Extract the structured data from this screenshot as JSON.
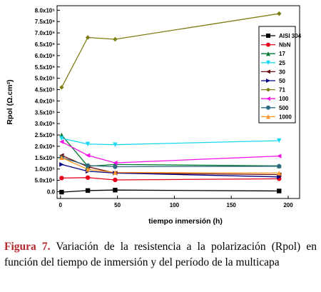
{
  "chart_data": {
    "type": "line",
    "xlabel": "tiempo inmersión (h)",
    "ylabel": "Rpol (Ω.cm²)",
    "xlim": [
      -3,
      210
    ],
    "ylim": [
      -30000,
      820000
    ],
    "x_ticks": [
      {
        "value": 0,
        "label": "0"
      },
      {
        "value": 50,
        "label": "50"
      },
      {
        "value": 100,
        "label": "100"
      },
      {
        "value": 150,
        "label": "150"
      },
      {
        "value": 200,
        "label": "200"
      }
    ],
    "y_ticks": [
      {
        "value": 0,
        "label": "0.0"
      },
      {
        "value": 50000,
        "label": "5.0x10⁴"
      },
      {
        "value": 100000,
        "label": "1.0x10⁵"
      },
      {
        "value": 150000,
        "label": "1.5x10⁵"
      },
      {
        "value": 200000,
        "label": "2.0x10⁵"
      },
      {
        "value": 250000,
        "label": "2.5x10⁵"
      },
      {
        "value": 300000,
        "label": "3.0x10⁵"
      },
      {
        "value": 350000,
        "label": "3.5x10⁵"
      },
      {
        "value": 400000,
        "label": "4.0x10⁵"
      },
      {
        "value": 450000,
        "label": "4.5x10⁵"
      },
      {
        "value": 500000,
        "label": "5.0x10⁵"
      },
      {
        "value": 550000,
        "label": "5.5x10⁵"
      },
      {
        "value": 600000,
        "label": "6.0x10⁵"
      },
      {
        "value": 650000,
        "label": "6.5x10⁵"
      },
      {
        "value": 700000,
        "label": "7.0x10⁵"
      },
      {
        "value": 750000,
        "label": "7.5x10⁵"
      },
      {
        "value": 800000,
        "label": "8.0x10⁵"
      }
    ],
    "legend_position": "top-right",
    "series": [
      {
        "name": "AISI 304",
        "color": "#000000",
        "marker": "square",
        "x": [
          1,
          24,
          48,
          192
        ],
        "y": [
          -2000,
          5000,
          7000,
          3000
        ]
      },
      {
        "name": "NbN",
        "color": "#e8001c",
        "marker": "circle",
        "x": [
          1,
          24,
          48,
          192
        ],
        "y": [
          60000,
          62000,
          52000,
          57000
        ]
      },
      {
        "name": "17",
        "color": "#007a2e",
        "marker": "triangle-up",
        "x": [
          1,
          24,
          48,
          192
        ],
        "y": [
          250000,
          112000,
          120000,
          114000
        ]
      },
      {
        "name": "25",
        "color": "#19d9f2",
        "marker": "triangle-down",
        "x": [
          1,
          24,
          48,
          192
        ],
        "y": [
          235000,
          210000,
          207000,
          225000
        ]
      },
      {
        "name": "30",
        "color": "#6b0f0f",
        "marker": "triangle-left",
        "x": [
          1,
          24,
          48,
          192
        ],
        "y": [
          160000,
          110000,
          82000,
          75000
        ]
      },
      {
        "name": "50",
        "color": "#000080",
        "marker": "triangle-right",
        "x": [
          1,
          24,
          48,
          192
        ],
        "y": [
          120000,
          90000,
          82000,
          65000
        ]
      },
      {
        "name": "71",
        "color": "#7d7d12",
        "marker": "diamond",
        "x": [
          1,
          24,
          48,
          192
        ],
        "y": [
          460000,
          680000,
          672000,
          785000
        ]
      },
      {
        "name": "100",
        "color": "#f212e6",
        "marker": "triangle-left",
        "x": [
          1,
          24,
          48,
          192
        ],
        "y": [
          220000,
          160000,
          127000,
          157000
        ]
      },
      {
        "name": "500",
        "color": "#2e6b80",
        "marker": "circle",
        "x": [
          1,
          24,
          48,
          192
        ],
        "y": [
          150000,
          115000,
          110000,
          112000
        ]
      },
      {
        "name": "1000",
        "color": "#ff9420",
        "marker": "triangle-up",
        "x": [
          1,
          24,
          48,
          192
        ],
        "y": [
          150000,
          98000,
          85000,
          82000
        ]
      }
    ]
  },
  "caption": {
    "label": "Figura 7.",
    "text": " Variación de la resistencia a la polarización (Rpol) en función del tiempo de inmersión y del período de la multicapa"
  }
}
